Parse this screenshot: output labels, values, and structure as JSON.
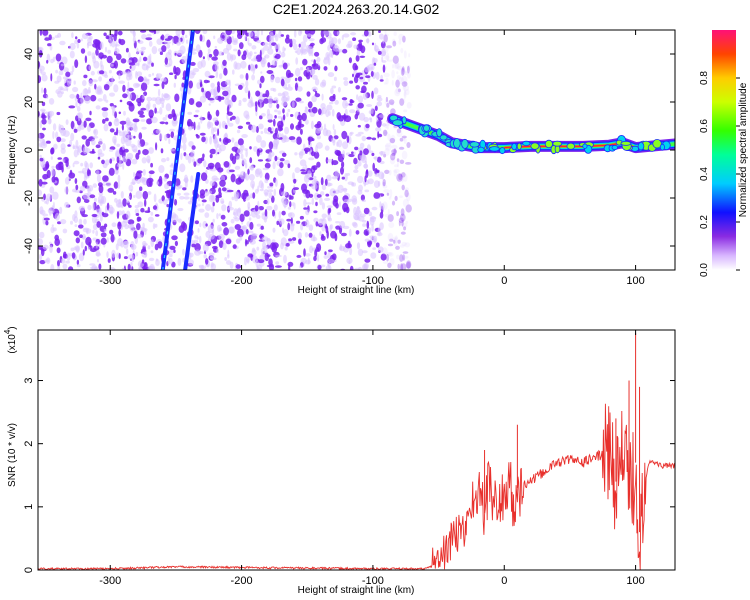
{
  "title": "C2E1.2024.263.20.14.G02",
  "colors": {
    "snr_line": "#e8302c",
    "spectrogram_dots": "#7a22ee",
    "spectrogram_light": "#d9c2ff",
    "frame": "#000000"
  },
  "chart_data": [
    {
      "type": "heatmap",
      "title": "C2E1.2024.263.20.14.G02",
      "xlabel": "Height of straight line (km)",
      "ylabel": "Frequency (Hz)",
      "xlim": [
        -355,
        130
      ],
      "ylim": [
        -50,
        50
      ],
      "x_ticks": [
        -300,
        -200,
        -100,
        0,
        100
      ],
      "y_ticks": [
        -40,
        -20,
        0,
        20,
        40
      ],
      "noise_region_x": [
        -355,
        -80
      ],
      "streaks": [
        {
          "name": "",
          "x": [
            -260,
            -237
          ],
          "y": [
            -50,
            50
          ]
        },
        {
          "name": "",
          "x": [
            -243,
            -233
          ],
          "y": [
            -50,
            -10
          ]
        }
      ],
      "main_signal": {
        "x": [
          -85,
          -70,
          -60,
          -50,
          -40,
          -30,
          -20,
          -10,
          0,
          20,
          40,
          60,
          80,
          90,
          100,
          110,
          130
        ],
        "y": [
          13,
          10,
          8,
          6,
          3,
          2,
          1,
          1,
          1,
          1.5,
          1.5,
          1.5,
          2,
          3,
          1,
          1.5,
          2.5
        ]
      },
      "colorbar": {
        "label": "Normalized spectral amplitude",
        "range": [
          0,
          1
        ],
        "ticks": [
          0.0,
          0.2,
          0.4,
          0.6,
          0.8
        ],
        "colormap": "rainbow"
      }
    },
    {
      "type": "line",
      "xlabel": "Height of straight line (km)",
      "ylabel": "SNR (10 * v/v)",
      "y_multiplier": "(x10",
      "y_multiplier_exp": "4",
      "y_multiplier_close": ")",
      "xlim": [
        -355,
        130
      ],
      "ylim": [
        0,
        3.8
      ],
      "x_ticks": [
        -300,
        -200,
        -100,
        0,
        100
      ],
      "y_ticks": [
        0,
        1,
        2,
        3
      ],
      "series": [
        {
          "x": [
            -355,
            -300,
            -250,
            -200,
            -150,
            -100,
            -60,
            -50,
            -45,
            -40,
            -35,
            -30,
            -25,
            -20,
            -15,
            -12,
            -10,
            -5,
            0,
            5,
            8,
            10,
            12,
            15,
            20,
            30,
            40,
            50,
            60,
            70,
            80,
            85,
            90,
            95,
            100,
            102,
            105,
            110,
            115,
            120,
            130
          ],
          "y": [
            0.02,
            0.02,
            0.05,
            0.04,
            0.03,
            0.02,
            0.02,
            0.1,
            0.3,
            0.45,
            0.6,
            0.6,
            1.1,
            1.2,
            0.9,
            1.4,
            1.2,
            1.0,
            1.2,
            1.3,
            0.8,
            1.3,
            1.25,
            1.35,
            1.4,
            1.55,
            1.7,
            1.75,
            1.7,
            1.8,
            1.85,
            1.4,
            1.9,
            1.2,
            1.7,
            0.3,
            1.2,
            1.7,
            1.7,
            1.65,
            1.65
          ]
        }
      ],
      "spikes": [
        {
          "x": -15,
          "y": 1.9
        },
        {
          "x": 10,
          "y": 2.3
        },
        {
          "x": 85,
          "y": 2.4
        },
        {
          "x": 95,
          "y": 3.0
        },
        {
          "x": 100,
          "y": 3.75
        },
        {
          "x": 103,
          "y": 2.9
        }
      ]
    }
  ]
}
